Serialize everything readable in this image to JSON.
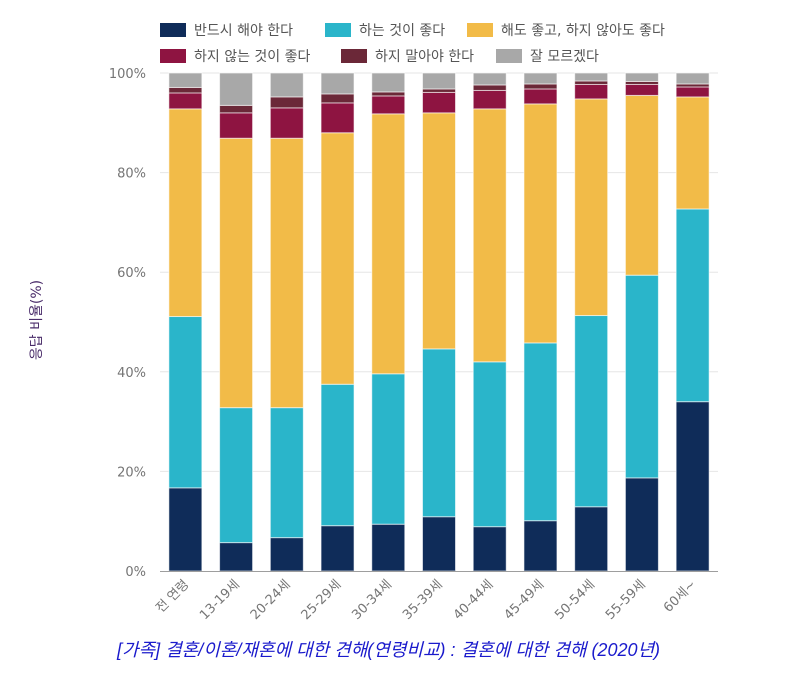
{
  "chart_data": {
    "type": "bar",
    "stacked": true,
    "title": "[가족] 결혼/이혼/재혼에 대한 견해(연령비교) : 결혼에 대한 견해 (2020년)",
    "xlabel": "",
    "ylabel": "응답 비율(%)",
    "ylim": [
      0,
      100
    ],
    "yticks": [
      "0%",
      "20%",
      "40%",
      "60%",
      "80%",
      "100%"
    ],
    "ytick_values": [
      0,
      20,
      40,
      60,
      80,
      100
    ],
    "grid": true,
    "legend_position": "top",
    "categories": [
      "전 연령",
      "13-19세",
      "20-24세",
      "25-29세",
      "30-34세",
      "35-39세",
      "40-44세",
      "45-49세",
      "50-54세",
      "55-59세",
      "60세~"
    ],
    "series": [
      {
        "name": "반드시 해야 한다",
        "color": "#0f2c59",
        "values": [
          16.7,
          5.7,
          6.7,
          9.1,
          9.4,
          10.9,
          8.9,
          10.1,
          12.9,
          18.7,
          34.0
        ]
      },
      {
        "name": "하는 것이 좋다",
        "color": "#2ab5ca",
        "values": [
          34.4,
          27.1,
          26.1,
          28.4,
          30.2,
          33.7,
          33.1,
          35.7,
          38.4,
          40.7,
          38.7
        ]
      },
      {
        "name": "해도 좋고, 하지 않아도 좋다",
        "color": "#f2bb48",
        "values": [
          41.7,
          54.1,
          54.1,
          50.5,
          52.2,
          47.4,
          50.8,
          48.0,
          43.5,
          36.1,
          22.5
        ]
      },
      {
        "name": "하지 않는 것이 좋다",
        "color": "#8e1441",
        "values": [
          3.2,
          5.1,
          6.1,
          6.0,
          3.6,
          4.1,
          3.7,
          3.0,
          2.9,
          2.2,
          2.0
        ]
      },
      {
        "name": "하지 말아야 한다",
        "color": "#6b2838",
        "values": [
          1.1,
          1.5,
          2.2,
          1.8,
          0.8,
          0.7,
          1.1,
          1.0,
          0.7,
          0.6,
          0.6
        ]
      },
      {
        "name": "잘 모르겠다",
        "color": "#a8a8a8",
        "values": [
          2.9,
          6.5,
          4.8,
          4.2,
          3.8,
          3.2,
          2.4,
          2.2,
          1.6,
          1.7,
          2.2
        ]
      }
    ]
  }
}
